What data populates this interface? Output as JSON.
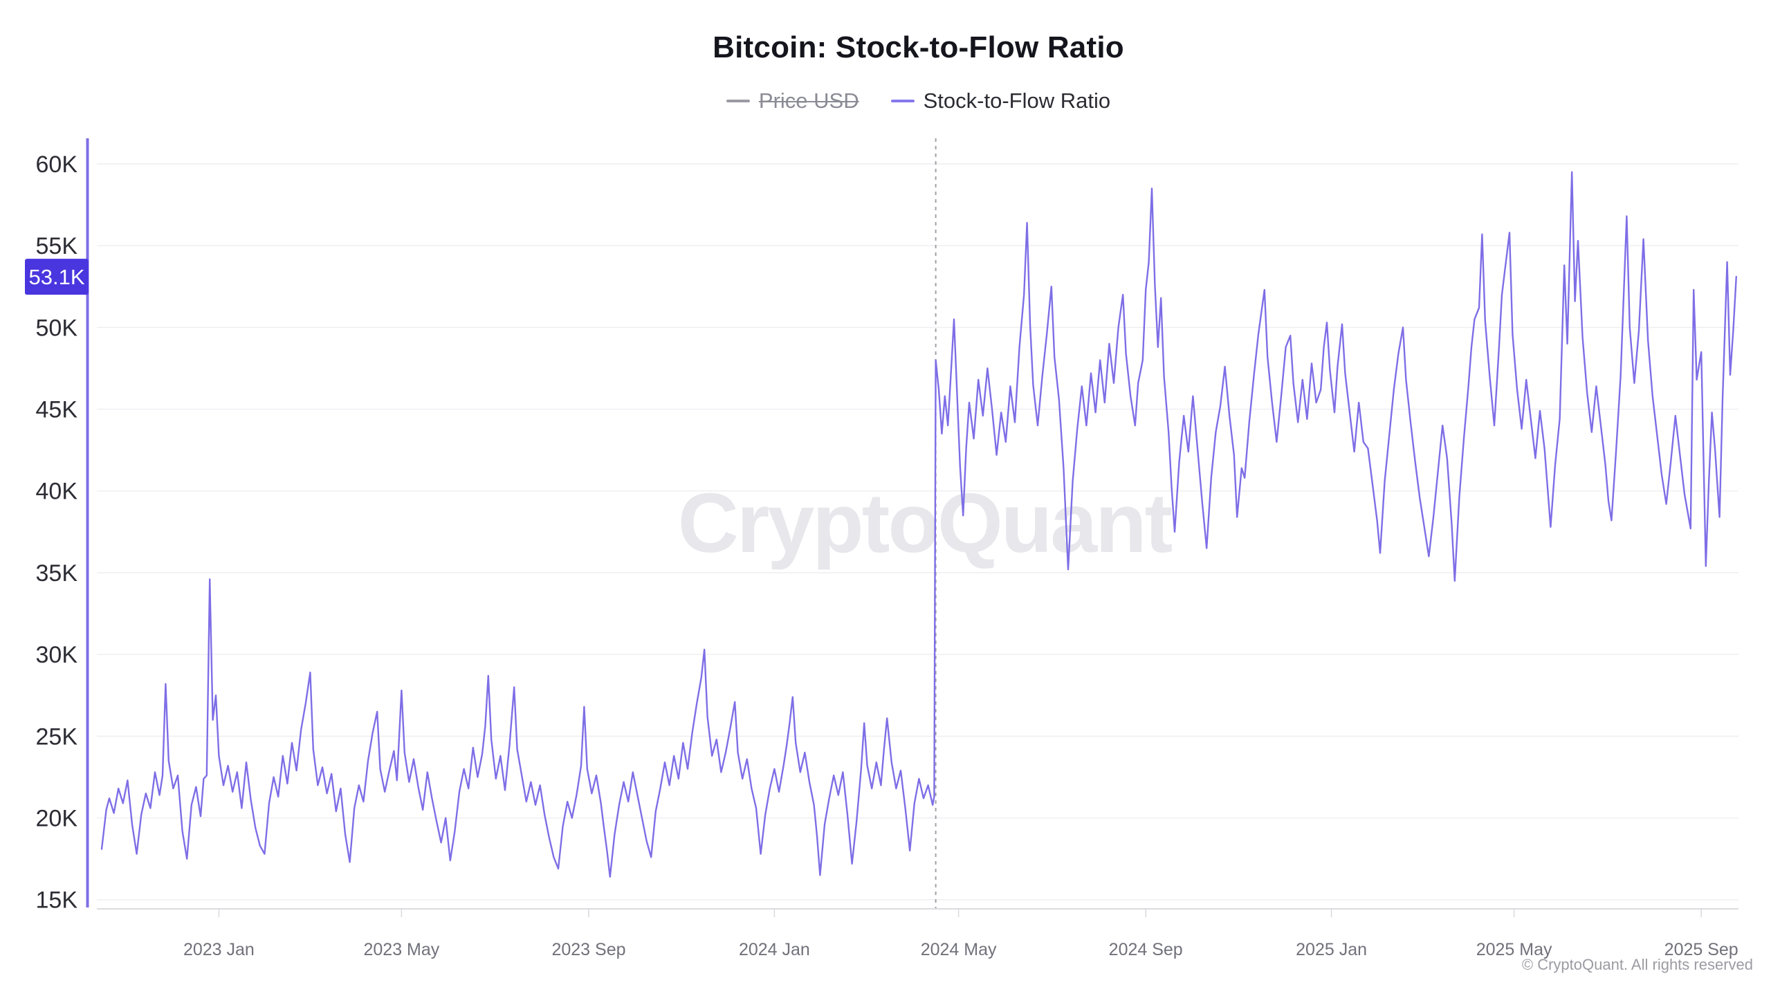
{
  "header": {
    "title": "Bitcoin: Stock-to-Flow Ratio"
  },
  "legend": {
    "items": [
      {
        "label": "Price USD",
        "color": "#9a9aa3",
        "disabled": true
      },
      {
        "label": "Stock-to-Flow Ratio",
        "color": "#8678ee",
        "disabled": false
      }
    ]
  },
  "watermark": "CryptoQuant",
  "copyright": "© CryptoQuant. All rights reserved",
  "badge": {
    "label": "53.1K",
    "value": 53.1,
    "color": "#4a36df"
  },
  "chart_data": {
    "type": "line",
    "title": "Bitcoin: Stock-to-Flow Ratio",
    "series_name": "Stock-to-Flow Ratio",
    "color": "#7d6ee6",
    "grid": true,
    "legend_position": "top",
    "unit": "K",
    "x_start_date": "2022-10-15",
    "x_end_date": "2025-09-24",
    "points_format": "[day_index_from_2022-10-15, value_in_thousands]",
    "y_ticks": [
      {
        "label": "60K",
        "value": 60
      },
      {
        "label": "55K",
        "value": 55
      },
      {
        "label": "50K",
        "value": 50
      },
      {
        "label": "45K",
        "value": 45
      },
      {
        "label": "40K",
        "value": 40
      },
      {
        "label": "35K",
        "value": 35
      },
      {
        "label": "30K",
        "value": 30
      },
      {
        "label": "25K",
        "value": 25
      },
      {
        "label": "20K",
        "value": 20
      },
      {
        "label": "15K",
        "value": 15
      }
    ],
    "x_ticks": [
      {
        "label": "2023 Jan",
        "day": 77
      },
      {
        "label": "2023 May",
        "day": 197
      },
      {
        "label": "2023 Sep",
        "day": 320
      },
      {
        "label": "2024 Jan",
        "day": 442
      },
      {
        "label": "2024 May",
        "day": 563
      },
      {
        "label": "2024 Sep",
        "day": 686
      },
      {
        "label": "2025 Jan",
        "day": 808
      },
      {
        "label": "2025 May",
        "day": 928
      },
      {
        "label": "2025 Sep",
        "day": 1051
      }
    ],
    "halving_day_index": 548,
    "last_value": 53.1,
    "points": [
      [
        0,
        18.1
      ],
      [
        3,
        20.5
      ],
      [
        5,
        21.2
      ],
      [
        8,
        20.3
      ],
      [
        11,
        21.8
      ],
      [
        14,
        20.9
      ],
      [
        17,
        22.3
      ],
      [
        20,
        19.6
      ],
      [
        23,
        17.8
      ],
      [
        26,
        20.2
      ],
      [
        29,
        21.5
      ],
      [
        32,
        20.6
      ],
      [
        35,
        22.8
      ],
      [
        38,
        21.4
      ],
      [
        40,
        22.6
      ],
      [
        42,
        28.2
      ],
      [
        44,
        23.5
      ],
      [
        47,
        21.8
      ],
      [
        50,
        22.6
      ],
      [
        53,
        19.2
      ],
      [
        56,
        17.5
      ],
      [
        59,
        20.8
      ],
      [
        62,
        21.9
      ],
      [
        65,
        20.1
      ],
      [
        67,
        22.4
      ],
      [
        69,
        22.6
      ],
      [
        71,
        34.6
      ],
      [
        73,
        26.0
      ],
      [
        75,
        27.5
      ],
      [
        77,
        23.8
      ],
      [
        80,
        22.0
      ],
      [
        83,
        23.2
      ],
      [
        86,
        21.6
      ],
      [
        89,
        22.8
      ],
      [
        92,
        20.6
      ],
      [
        95,
        23.4
      ],
      [
        98,
        21.1
      ],
      [
        101,
        19.4
      ],
      [
        104,
        18.3
      ],
      [
        107,
        17.8
      ],
      [
        110,
        20.9
      ],
      [
        113,
        22.5
      ],
      [
        116,
        21.3
      ],
      [
        119,
        23.8
      ],
      [
        122,
        22.1
      ],
      [
        125,
        24.6
      ],
      [
        128,
        22.9
      ],
      [
        131,
        25.4
      ],
      [
        134,
        27.0
      ],
      [
        137,
        28.9
      ],
      [
        139,
        24.2
      ],
      [
        142,
        22.0
      ],
      [
        145,
        23.1
      ],
      [
        148,
        21.5
      ],
      [
        151,
        22.7
      ],
      [
        154,
        20.4
      ],
      [
        157,
        21.8
      ],
      [
        160,
        19.0
      ],
      [
        163,
        17.3
      ],
      [
        166,
        20.6
      ],
      [
        169,
        22.0
      ],
      [
        172,
        21.0
      ],
      [
        175,
        23.5
      ],
      [
        178,
        25.2
      ],
      [
        181,
        26.5
      ],
      [
        183,
        23.0
      ],
      [
        186,
        21.6
      ],
      [
        189,
        22.9
      ],
      [
        192,
        24.1
      ],
      [
        194,
        22.3
      ],
      [
        197,
        27.8
      ],
      [
        199,
        24.0
      ],
      [
        202,
        22.2
      ],
      [
        205,
        23.6
      ],
      [
        208,
        21.9
      ],
      [
        211,
        20.5
      ],
      [
        214,
        22.8
      ],
      [
        217,
        21.2
      ],
      [
        220,
        19.8
      ],
      [
        223,
        18.5
      ],
      [
        226,
        20.0
      ],
      [
        229,
        17.4
      ],
      [
        232,
        19.2
      ],
      [
        235,
        21.6
      ],
      [
        238,
        23.0
      ],
      [
        241,
        21.8
      ],
      [
        244,
        24.3
      ],
      [
        247,
        22.5
      ],
      [
        250,
        23.9
      ],
      [
        252,
        25.6
      ],
      [
        254,
        28.7
      ],
      [
        256,
        24.8
      ],
      [
        259,
        22.4
      ],
      [
        262,
        23.8
      ],
      [
        265,
        21.7
      ],
      [
        268,
        24.5
      ],
      [
        271,
        28.0
      ],
      [
        273,
        24.2
      ],
      [
        276,
        22.6
      ],
      [
        279,
        21.0
      ],
      [
        282,
        22.2
      ],
      [
        285,
        20.8
      ],
      [
        288,
        22.0
      ],
      [
        291,
        20.2
      ],
      [
        294,
        18.8
      ],
      [
        297,
        17.6
      ],
      [
        300,
        16.9
      ],
      [
        303,
        19.5
      ],
      [
        306,
        21.0
      ],
      [
        309,
        20.0
      ],
      [
        312,
        21.4
      ],
      [
        315,
        23.2
      ],
      [
        317,
        26.8
      ],
      [
        319,
        23.0
      ],
      [
        322,
        21.5
      ],
      [
        325,
        22.6
      ],
      [
        328,
        20.9
      ],
      [
        330,
        19.4
      ],
      [
        332,
        18.0
      ],
      [
        334,
        16.4
      ],
      [
        337,
        19.0
      ],
      [
        340,
        20.8
      ],
      [
        343,
        22.2
      ],
      [
        346,
        21.0
      ],
      [
        349,
        22.8
      ],
      [
        352,
        21.4
      ],
      [
        355,
        20.0
      ],
      [
        358,
        18.6
      ],
      [
        361,
        17.6
      ],
      [
        364,
        20.4
      ],
      [
        367,
        21.8
      ],
      [
        370,
        23.4
      ],
      [
        373,
        22.0
      ],
      [
        376,
        23.8
      ],
      [
        379,
        22.4
      ],
      [
        382,
        24.6
      ],
      [
        385,
        23.0
      ],
      [
        388,
        25.2
      ],
      [
        391,
        27.0
      ],
      [
        394,
        28.6
      ],
      [
        396,
        30.3
      ],
      [
        398,
        26.2
      ],
      [
        401,
        23.8
      ],
      [
        404,
        24.8
      ],
      [
        407,
        22.8
      ],
      [
        410,
        24.0
      ],
      [
        413,
        25.5
      ],
      [
        416,
        27.1
      ],
      [
        418,
        24.0
      ],
      [
        421,
        22.4
      ],
      [
        424,
        23.6
      ],
      [
        427,
        21.8
      ],
      [
        430,
        20.6
      ],
      [
        433,
        17.8
      ],
      [
        436,
        20.2
      ],
      [
        439,
        21.8
      ],
      [
        442,
        23.0
      ],
      [
        445,
        21.6
      ],
      [
        448,
        23.2
      ],
      [
        450,
        24.4
      ],
      [
        452,
        25.8
      ],
      [
        454,
        27.4
      ],
      [
        456,
        24.6
      ],
      [
        459,
        22.8
      ],
      [
        462,
        24.0
      ],
      [
        465,
        22.2
      ],
      [
        468,
        20.8
      ],
      [
        470,
        18.9
      ],
      [
        472,
        16.5
      ],
      [
        475,
        19.6
      ],
      [
        478,
        21.2
      ],
      [
        481,
        22.6
      ],
      [
        484,
        21.4
      ],
      [
        487,
        22.8
      ],
      [
        490,
        20.2
      ],
      [
        493,
        17.2
      ],
      [
        496,
        19.8
      ],
      [
        499,
        23.0
      ],
      [
        501,
        25.8
      ],
      [
        503,
        23.2
      ],
      [
        506,
        21.8
      ],
      [
        509,
        23.4
      ],
      [
        512,
        22.0
      ],
      [
        514,
        24.2
      ],
      [
        516,
        26.1
      ],
      [
        519,
        23.4
      ],
      [
        522,
        21.8
      ],
      [
        525,
        22.9
      ],
      [
        528,
        20.6
      ],
      [
        531,
        18.0
      ],
      [
        534,
        20.9
      ],
      [
        537,
        22.4
      ],
      [
        540,
        21.2
      ],
      [
        543,
        22.0
      ],
      [
        546,
        20.8
      ],
      [
        547,
        21.3
      ],
      [
        548,
        48.0
      ],
      [
        550,
        46.2
      ],
      [
        552,
        43.5
      ],
      [
        554,
        45.8
      ],
      [
        556,
        44.0
      ],
      [
        558,
        47.2
      ],
      [
        560,
        50.5
      ],
      [
        562,
        46.0
      ],
      [
        564,
        41.5
      ],
      [
        566,
        38.5
      ],
      [
        568,
        42.6
      ],
      [
        570,
        45.4
      ],
      [
        573,
        43.2
      ],
      [
        576,
        46.8
      ],
      [
        579,
        44.6
      ],
      [
        582,
        47.5
      ],
      [
        585,
        45.0
      ],
      [
        588,
        42.2
      ],
      [
        591,
        44.8
      ],
      [
        594,
        43.0
      ],
      [
        597,
        46.4
      ],
      [
        600,
        44.2
      ],
      [
        603,
        48.8
      ],
      [
        606,
        52.0
      ],
      [
        608,
        56.4
      ],
      [
        610,
        50.2
      ],
      [
        612,
        46.5
      ],
      [
        615,
        44.0
      ],
      [
        618,
        47.0
      ],
      [
        621,
        49.6
      ],
      [
        624,
        52.5
      ],
      [
        626,
        48.2
      ],
      [
        629,
        45.6
      ],
      [
        632,
        41.4
      ],
      [
        635,
        35.2
      ],
      [
        638,
        40.6
      ],
      [
        641,
        43.8
      ],
      [
        644,
        46.4
      ],
      [
        647,
        44.0
      ],
      [
        650,
        47.2
      ],
      [
        653,
        44.8
      ],
      [
        656,
        48.0
      ],
      [
        659,
        45.4
      ],
      [
        662,
        49.0
      ],
      [
        665,
        46.6
      ],
      [
        668,
        50.0
      ],
      [
        671,
        52.0
      ],
      [
        673,
        48.4
      ],
      [
        676,
        45.8
      ],
      [
        679,
        44.0
      ],
      [
        681,
        46.6
      ],
      [
        684,
        48.0
      ],
      [
        686,
        52.3
      ],
      [
        688,
        54.0
      ],
      [
        690,
        58.5
      ],
      [
        692,
        52.6
      ],
      [
        694,
        48.8
      ],
      [
        696,
        51.8
      ],
      [
        698,
        47.0
      ],
      [
        701,
        43.6
      ],
      [
        703,
        40.2
      ],
      [
        705,
        37.5
      ],
      [
        708,
        41.8
      ],
      [
        711,
        44.6
      ],
      [
        714,
        42.4
      ],
      [
        717,
        45.8
      ],
      [
        720,
        42.6
      ],
      [
        723,
        39.4
      ],
      [
        726,
        36.5
      ],
      [
        729,
        40.8
      ],
      [
        732,
        43.6
      ],
      [
        735,
        45.2
      ],
      [
        738,
        47.6
      ],
      [
        741,
        44.6
      ],
      [
        744,
        42.2
      ],
      [
        746,
        38.4
      ],
      [
        749,
        41.4
      ],
      [
        751,
        40.8
      ],
      [
        754,
        44.2
      ],
      [
        757,
        47.0
      ],
      [
        760,
        49.6
      ],
      [
        764,
        52.3
      ],
      [
        766,
        48.2
      ],
      [
        769,
        45.4
      ],
      [
        772,
        43.0
      ],
      [
        775,
        45.8
      ],
      [
        778,
        48.8
      ],
      [
        781,
        49.5
      ],
      [
        783,
        46.6
      ],
      [
        786,
        44.2
      ],
      [
        789,
        46.8
      ],
      [
        792,
        44.4
      ],
      [
        795,
        47.8
      ],
      [
        798,
        45.4
      ],
      [
        801,
        46.2
      ],
      [
        803,
        48.8
      ],
      [
        805,
        50.3
      ],
      [
        807,
        47.4
      ],
      [
        810,
        44.8
      ],
      [
        812,
        47.6
      ],
      [
        815,
        50.2
      ],
      [
        817,
        47.2
      ],
      [
        820,
        44.8
      ],
      [
        823,
        42.4
      ],
      [
        826,
        45.4
      ],
      [
        829,
        43.0
      ],
      [
        832,
        42.6
      ],
      [
        835,
        40.4
      ],
      [
        838,
        38.2
      ],
      [
        840,
        36.2
      ],
      [
        843,
        40.6
      ],
      [
        846,
        43.4
      ],
      [
        849,
        46.2
      ],
      [
        852,
        48.4
      ],
      [
        855,
        50.0
      ],
      [
        857,
        46.8
      ],
      [
        860,
        44.2
      ],
      [
        863,
        41.8
      ],
      [
        866,
        39.6
      ],
      [
        869,
        37.8
      ],
      [
        872,
        36.0
      ],
      [
        875,
        38.4
      ],
      [
        878,
        41.2
      ],
      [
        881,
        44.0
      ],
      [
        884,
        42.0
      ],
      [
        887,
        38.0
      ],
      [
        889,
        34.5
      ],
      [
        892,
        39.6
      ],
      [
        895,
        43.2
      ],
      [
        898,
        46.4
      ],
      [
        900,
        48.8
      ],
      [
        902,
        50.5
      ],
      [
        905,
        51.2
      ],
      [
        907,
        55.7
      ],
      [
        909,
        50.4
      ],
      [
        912,
        47.0
      ],
      [
        915,
        44.0
      ],
      [
        918,
        48.6
      ],
      [
        920,
        52.0
      ],
      [
        925,
        55.8
      ],
      [
        927,
        49.6
      ],
      [
        930,
        46.2
      ],
      [
        933,
        43.8
      ],
      [
        936,
        46.8
      ],
      [
        939,
        44.4
      ],
      [
        942,
        42.0
      ],
      [
        945,
        44.9
      ],
      [
        948,
        42.6
      ],
      [
        950,
        40.2
      ],
      [
        952,
        37.8
      ],
      [
        955,
        41.6
      ],
      [
        958,
        44.4
      ],
      [
        961,
        53.8
      ],
      [
        963,
        49.0
      ],
      [
        966,
        59.5
      ],
      [
        968,
        51.6
      ],
      [
        970,
        55.3
      ],
      [
        973,
        49.4
      ],
      [
        976,
        46.0
      ],
      [
        979,
        43.6
      ],
      [
        982,
        46.4
      ],
      [
        985,
        44.0
      ],
      [
        988,
        41.6
      ],
      [
        990,
        39.4
      ],
      [
        992,
        38.2
      ],
      [
        995,
        42.4
      ],
      [
        998,
        47.0
      ],
      [
        1002,
        56.8
      ],
      [
        1004,
        50.0
      ],
      [
        1007,
        46.6
      ],
      [
        1010,
        49.8
      ],
      [
        1013,
        55.4
      ],
      [
        1016,
        49.2
      ],
      [
        1019,
        45.8
      ],
      [
        1022,
        43.4
      ],
      [
        1025,
        41.0
      ],
      [
        1028,
        39.2
      ],
      [
        1031,
        41.8
      ],
      [
        1034,
        44.6
      ],
      [
        1037,
        42.2
      ],
      [
        1040,
        39.8
      ],
      [
        1044,
        37.7
      ],
      [
        1046,
        52.3
      ],
      [
        1048,
        46.8
      ],
      [
        1051,
        48.5
      ],
      [
        1054,
        35.4
      ],
      [
        1056,
        40.6
      ],
      [
        1058,
        44.8
      ],
      [
        1060,
        42.6
      ],
      [
        1063,
        38.4
      ],
      [
        1065,
        45.6
      ],
      [
        1068,
        54.0
      ],
      [
        1070,
        47.1
      ],
      [
        1072,
        49.8
      ],
      [
        1074,
        53.1
      ]
    ]
  }
}
